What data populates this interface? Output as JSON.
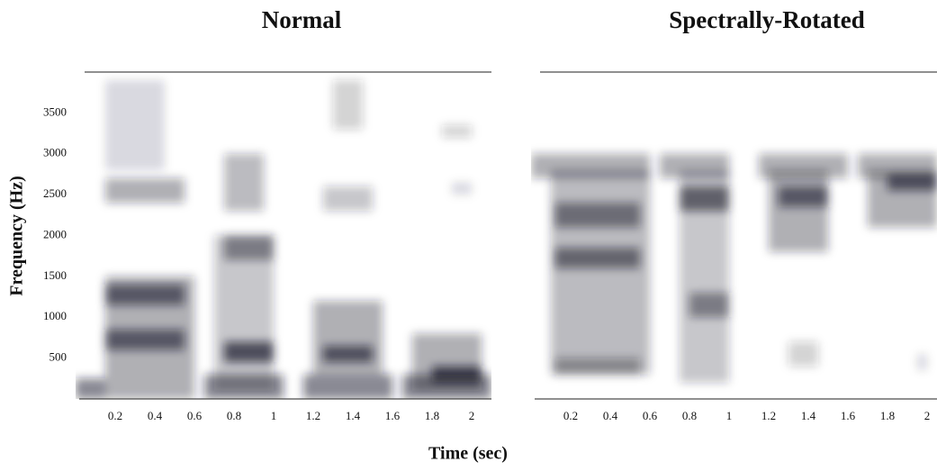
{
  "chart_data": [
    {
      "type": "spectrogram",
      "title": "Normal",
      "ylabel": "Frequency (Hz)",
      "xlabel": "Time (sec)",
      "color": "#1c1c2c",
      "xlim": [
        0,
        2.1
      ],
      "ylim": [
        0,
        4000
      ],
      "xticks": [
        0.2,
        0.4,
        0.6,
        0.8,
        1,
        1.2,
        1.4,
        1.6,
        1.8,
        2
      ],
      "yticks": [
        500,
        1000,
        1500,
        2000,
        2500,
        3000,
        3500
      ],
      "blobs": [
        {
          "x": [
            0.0,
            0.15
          ],
          "y": [
            0,
            250
          ],
          "level": 0.5
        },
        {
          "x": [
            0.15,
            0.6
          ],
          "y": [
            0,
            1500
          ],
          "level": 0.35
        },
        {
          "x": [
            0.15,
            0.55
          ],
          "y": [
            600,
            850
          ],
          "level": 0.6
        },
        {
          "x": [
            0.15,
            0.55
          ],
          "y": [
            1150,
            1400
          ],
          "level": 0.6
        },
        {
          "x": [
            0.15,
            0.55
          ],
          "y": [
            2400,
            2700
          ],
          "level": 0.35
        },
        {
          "x": [
            0.15,
            0.45
          ],
          "y": [
            2800,
            3900
          ],
          "level": 0.15
        },
        {
          "x": [
            0.65,
            1.05
          ],
          "y": [
            0,
            300
          ],
          "level": 0.5
        },
        {
          "x": [
            0.7,
            1.0
          ],
          "y": [
            100,
            2000
          ],
          "level": 0.25
        },
        {
          "x": [
            0.75,
            1.0
          ],
          "y": [
            450,
            700
          ],
          "level": 0.7
        },
        {
          "x": [
            0.75,
            1.0
          ],
          "y": [
            1700,
            2000
          ],
          "level": 0.45
        },
        {
          "x": [
            0.75,
            0.95
          ],
          "y": [
            2300,
            3000
          ],
          "level": 0.3
        },
        {
          "x": [
            1.15,
            1.6
          ],
          "y": [
            0,
            300
          ],
          "level": 0.5
        },
        {
          "x": [
            1.2,
            1.55
          ],
          "y": [
            300,
            1200
          ],
          "level": 0.35
        },
        {
          "x": [
            1.25,
            1.5
          ],
          "y": [
            450,
            650
          ],
          "level": 0.65
        },
        {
          "x": [
            1.25,
            1.5
          ],
          "y": [
            2300,
            2600
          ],
          "level": 0.25
        },
        {
          "x": [
            1.3,
            1.45
          ],
          "y": [
            3300,
            3900
          ],
          "level": 0.2
        },
        {
          "x": [
            1.65,
            2.1
          ],
          "y": [
            0,
            300
          ],
          "level": 0.5
        },
        {
          "x": [
            1.7,
            2.05
          ],
          "y": [
            100,
            800
          ],
          "level": 0.35
        },
        {
          "x": [
            1.8,
            2.05
          ],
          "y": [
            200,
            400
          ],
          "level": 0.75
        },
        {
          "x": [
            1.85,
            2.0
          ],
          "y": [
            3200,
            3350
          ],
          "level": 0.2
        },
        {
          "x": [
            1.9,
            2.0
          ],
          "y": [
            2500,
            2650
          ],
          "level": 0.15
        }
      ]
    },
    {
      "type": "spectrogram",
      "title": "Spectrally-Rotated",
      "color": "#1c1c2c",
      "xlim": [
        0,
        2.05
      ],
      "ylim": [
        0,
        4000
      ],
      "xticks": [
        0.2,
        0.4,
        0.6,
        0.8,
        1,
        1.2,
        1.4,
        1.6,
        1.8,
        2
      ],
      "blobs": [
        {
          "x": [
            0.0,
            0.6
          ],
          "y": [
            2700,
            3000
          ],
          "level": 0.35
        },
        {
          "x": [
            0.1,
            0.6
          ],
          "y": [
            300,
            2800
          ],
          "level": 0.3
        },
        {
          "x": [
            0.12,
            0.55
          ],
          "y": [
            2100,
            2400
          ],
          "level": 0.5
        },
        {
          "x": [
            0.12,
            0.55
          ],
          "y": [
            1600,
            1850
          ],
          "level": 0.55
        },
        {
          "x": [
            0.12,
            0.55
          ],
          "y": [
            300,
            500
          ],
          "level": 0.35
        },
        {
          "x": [
            0.65,
            1.0
          ],
          "y": [
            2700,
            3000
          ],
          "level": 0.35
        },
        {
          "x": [
            0.75,
            1.0
          ],
          "y": [
            200,
            2800
          ],
          "level": 0.25
        },
        {
          "x": [
            0.75,
            1.0
          ],
          "y": [
            2300,
            2600
          ],
          "level": 0.6
        },
        {
          "x": [
            0.8,
            1.0
          ],
          "y": [
            1000,
            1300
          ],
          "level": 0.45
        },
        {
          "x": [
            1.15,
            1.6
          ],
          "y": [
            2700,
            3000
          ],
          "level": 0.35
        },
        {
          "x": [
            1.2,
            1.5
          ],
          "y": [
            1800,
            2800
          ],
          "level": 0.35
        },
        {
          "x": [
            1.25,
            1.5
          ],
          "y": [
            2350,
            2600
          ],
          "level": 0.6
        },
        {
          "x": [
            1.3,
            1.45
          ],
          "y": [
            400,
            700
          ],
          "level": 0.2
        },
        {
          "x": [
            1.65,
            2.05
          ],
          "y": [
            2700,
            3000
          ],
          "level": 0.35
        },
        {
          "x": [
            1.7,
            2.05
          ],
          "y": [
            2100,
            2800
          ],
          "level": 0.35
        },
        {
          "x": [
            1.8,
            2.05
          ],
          "y": [
            2550,
            2750
          ],
          "level": 0.65
        },
        {
          "x": [
            1.95,
            2.0
          ],
          "y": [
            350,
            550
          ],
          "level": 0.15
        }
      ]
    }
  ]
}
